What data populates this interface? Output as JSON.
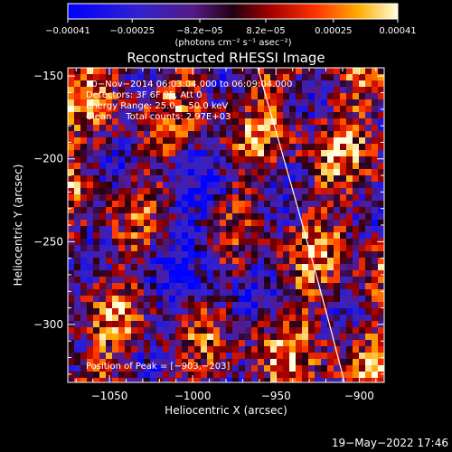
{
  "chart_data": {
    "type": "heatmap",
    "title": "Reconstructed RHESSI Image",
    "xlabel": "Heliocentric X (arcsec)",
    "ylabel": "Heliocentric Y (arcsec)",
    "xlim": [
      -1075,
      -885
    ],
    "ylim": [
      -335,
      -145
    ],
    "x_ticks": [
      -1050,
      -1000,
      -950,
      -900
    ],
    "y_ticks": [
      -150,
      -200,
      -250,
      -300
    ],
    "x_tick_labels": [
      "−1050",
      "−1000",
      "−950",
      "−900"
    ],
    "y_tick_labels": [
      "−150",
      "−200",
      "−250",
      "−300"
    ],
    "colorbar": {
      "range": [
        -0.00041,
        0.00041
      ],
      "ticks": [
        -0.00041,
        -0.00025,
        -8.2e-05,
        8.2e-05,
        0.00025,
        0.00041
      ],
      "tick_labels": [
        "−0.00041",
        "−0.00025",
        "−8.2e−05",
        "8.2e−05",
        "0.00025",
        "0.00041"
      ],
      "unit_label": "(photons cm⁻² s⁻¹ asec⁻²)"
    },
    "annotations": [
      "20−Nov−2014 06:03:04.000 to 06:09:04.000",
      "Detectors: 3F 6F 9F, Att 0",
      "Energy Range: 25.0 − 50.0 keV",
      "Clean     Total counts: 2.97E+03"
    ],
    "peak_label": "Position of Peak = [−903,−203]",
    "peak": [
      -903,
      -203
    ],
    "grid": false,
    "limb_line": true
  },
  "footer": {
    "date_stamp": "19−May−2022 17:46"
  },
  "colors": {
    "background": "#000000",
    "text": "#ffffff",
    "limb": "#ffffff"
  }
}
